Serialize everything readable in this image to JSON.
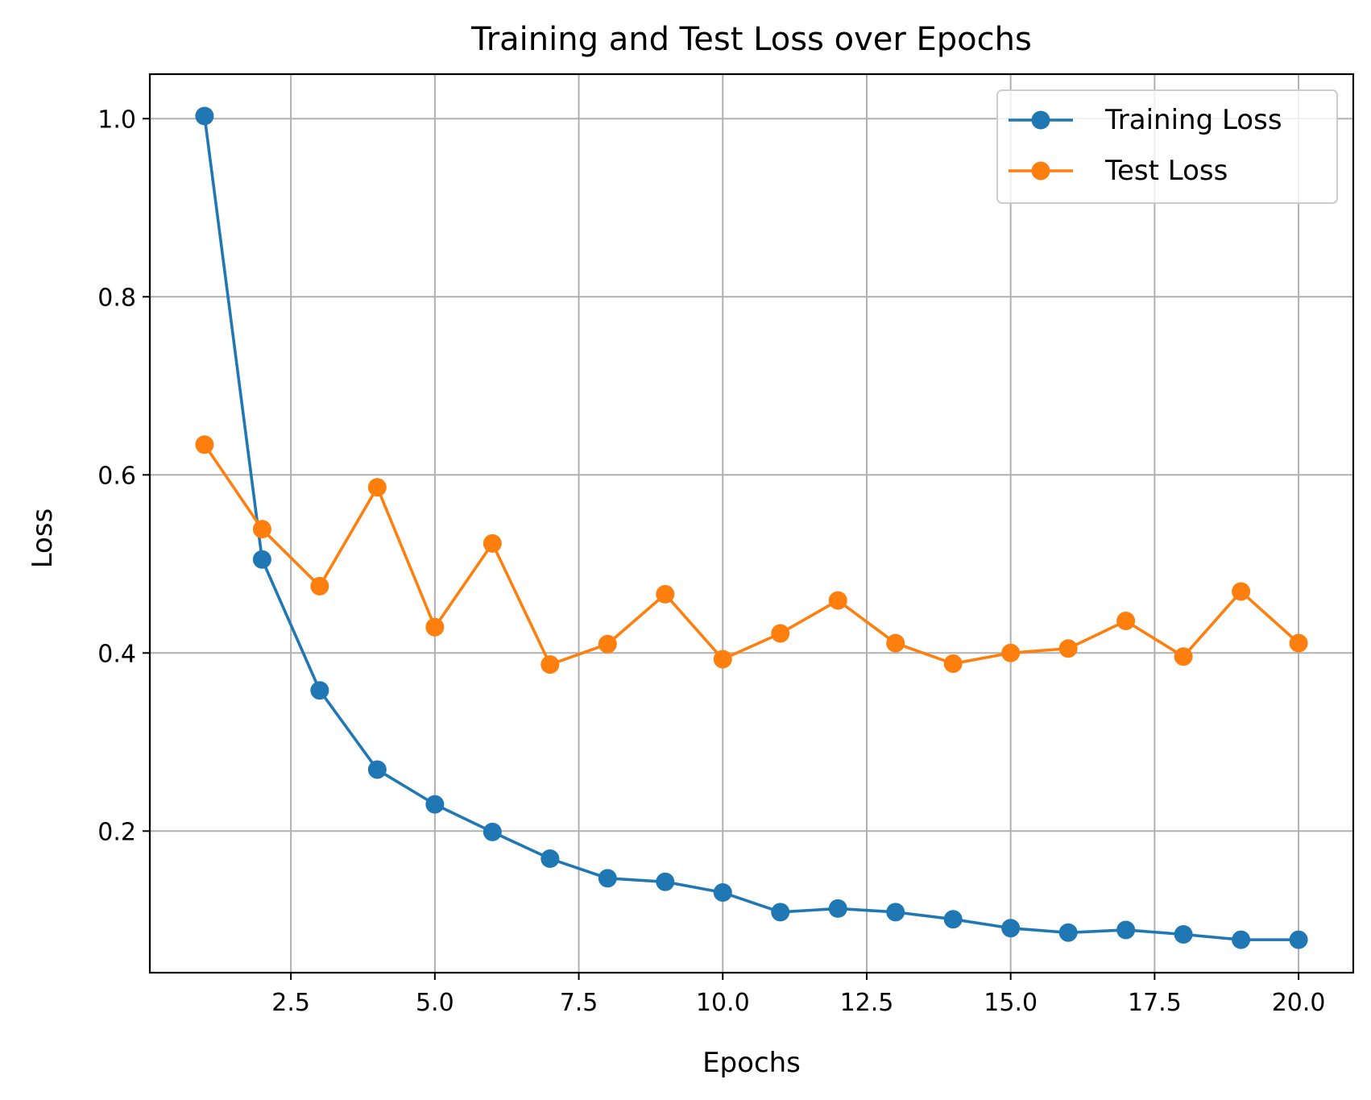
{
  "chart_data": {
    "type": "line",
    "title": "Training and Test Loss over Epochs",
    "xlabel": "Epochs",
    "ylabel": "Loss",
    "x": [
      1,
      2,
      3,
      4,
      5,
      6,
      7,
      8,
      9,
      10,
      11,
      12,
      13,
      14,
      15,
      16,
      17,
      18,
      19,
      20
    ],
    "xlim": [
      0.05,
      20.95
    ],
    "ylim": [
      0.041,
      1.05
    ],
    "xticks": [
      2.5,
      5.0,
      7.5,
      10.0,
      12.5,
      15.0,
      17.5,
      20.0
    ],
    "xtick_labels": [
      "2.5",
      "5.0",
      "7.5",
      "10.0",
      "12.5",
      "15.0",
      "17.5",
      "20.0"
    ],
    "yticks": [
      0.2,
      0.4,
      0.6,
      0.8,
      1.0
    ],
    "ytick_labels": [
      "0.2",
      "0.4",
      "0.6",
      "0.8",
      "1.0"
    ],
    "grid": true,
    "legend_position": "top-right",
    "series": [
      {
        "name": "Training Loss",
        "color": "#1f77b4",
        "marker": "circle",
        "values": [
          1.003,
          0.505,
          0.358,
          0.269,
          0.23,
          0.199,
          0.169,
          0.147,
          0.143,
          0.131,
          0.109,
          0.113,
          0.109,
          0.101,
          0.091,
          0.086,
          0.089,
          0.084,
          0.078,
          0.078
        ]
      },
      {
        "name": "Test Loss",
        "color": "#ff7f0e",
        "marker": "circle",
        "values": [
          0.634,
          0.539,
          0.475,
          0.586,
          0.429,
          0.523,
          0.387,
          0.41,
          0.466,
          0.393,
          0.422,
          0.459,
          0.411,
          0.388,
          0.4,
          0.405,
          0.436,
          0.396,
          0.469,
          0.411
        ]
      }
    ]
  }
}
